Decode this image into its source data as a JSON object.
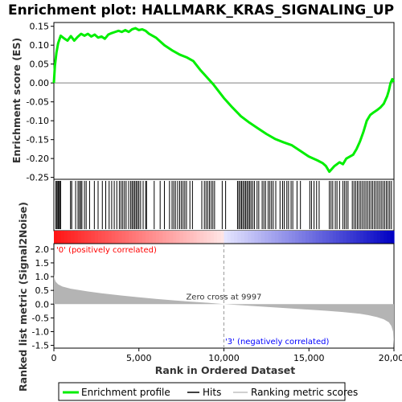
{
  "chart_data": [
    {
      "type": "line",
      "title": "Enrichment plot: HALLMARK_KRAS_SIGNALING_UP",
      "ylabel": "Enrichment score (ES)",
      "ylim": [
        -0.255,
        0.16
      ],
      "yticks": [
        "0.15",
        "0.10",
        "0.05",
        "0.00",
        "-0.05",
        "-0.10",
        "-0.15",
        "-0.20",
        "-0.25"
      ],
      "ytick_values": [
        0.15,
        0.1,
        0.05,
        0.0,
        -0.05,
        -0.1,
        -0.15,
        -0.2,
        -0.25
      ],
      "series": [
        {
          "name": "Enrichment profile",
          "color": "#00ee00",
          "x": [
            0,
            60,
            150,
            250,
            400,
            600,
            800,
            1000,
            1200,
            1400,
            1600,
            1800,
            2000,
            2200,
            2400,
            2600,
            2800,
            3000,
            3200,
            3400,
            3600,
            3800,
            4000,
            4200,
            4400,
            4600,
            4800,
            5000,
            5200,
            5400,
            5600,
            6000,
            6500,
            7000,
            7400,
            7800,
            8200,
            8600,
            9000,
            9400,
            10000,
            10500,
            11000,
            11500,
            12000,
            12500,
            13000,
            13500,
            14000,
            14500,
            15000,
            15500,
            15800,
            16000,
            16200,
            16500,
            16800,
            17000,
            17200,
            17400,
            17600,
            17800,
            18000,
            18200,
            18400,
            18600,
            18800,
            19000,
            19200,
            19400,
            19600,
            19700,
            19800,
            19900,
            20000
          ],
          "y": [
            0.0,
            0.045,
            0.08,
            0.105,
            0.125,
            0.118,
            0.112,
            0.124,
            0.112,
            0.122,
            0.13,
            0.125,
            0.13,
            0.123,
            0.128,
            0.12,
            0.123,
            0.117,
            0.128,
            0.132,
            0.135,
            0.138,
            0.135,
            0.14,
            0.135,
            0.142,
            0.145,
            0.14,
            0.142,
            0.138,
            0.13,
            0.12,
            0.1,
            0.085,
            0.075,
            0.068,
            0.058,
            0.035,
            0.015,
            -0.005,
            -0.04,
            -0.065,
            -0.088,
            -0.105,
            -0.12,
            -0.135,
            -0.148,
            -0.157,
            -0.165,
            -0.18,
            -0.195,
            -0.205,
            -0.212,
            -0.22,
            -0.235,
            -0.22,
            -0.21,
            -0.215,
            -0.2,
            -0.195,
            -0.19,
            -0.175,
            -0.155,
            -0.13,
            -0.1,
            -0.085,
            -0.078,
            -0.072,
            -0.065,
            -0.055,
            -0.035,
            -0.02,
            0.0,
            0.01,
            0.003
          ]
        }
      ]
    },
    {
      "type": "area",
      "ylabel": "Ranked list metric (Signal2Noise)",
      "xlabel": "Rank in Ordered Dataset",
      "xlim": [
        0,
        20000
      ],
      "ylim": [
        -1.6,
        2.2
      ],
      "xticks": [
        "0",
        "5,000",
        "10,000",
        "15,000",
        "20,000"
      ],
      "xtick_values": [
        0,
        5000,
        10000,
        15000,
        20000
      ],
      "yticks": [
        "2.0",
        "1.5",
        "1.0",
        "0.5",
        "0.0",
        "-0.5",
        "-1.0",
        "-1.5"
      ],
      "ytick_values": [
        2.0,
        1.5,
        1.0,
        0.5,
        0.0,
        -0.5,
        -1.0,
        -1.5
      ],
      "series": [
        {
          "name": "Ranking metric scores",
          "color": "#c0c0c0",
          "x": [
            0,
            30,
            100,
            250,
            500,
            1000,
            2000,
            3000,
            4000,
            5000,
            6000,
            7000,
            8000,
            9000,
            9997,
            11000,
            12000,
            13000,
            14000,
            15000,
            16000,
            17000,
            18000,
            18500,
            19000,
            19400,
            19700,
            19850,
            19950,
            20000
          ],
          "y": [
            1.1,
            0.95,
            0.82,
            0.72,
            0.64,
            0.56,
            0.46,
            0.38,
            0.31,
            0.25,
            0.19,
            0.14,
            0.09,
            0.05,
            0.0,
            -0.04,
            -0.08,
            -0.12,
            -0.16,
            -0.2,
            -0.24,
            -0.29,
            -0.35,
            -0.4,
            -0.47,
            -0.55,
            -0.66,
            -0.8,
            -1.0,
            -1.55
          ]
        }
      ],
      "annotations": {
        "positive": "'0' (positively correlated)",
        "negative": "'3' (negatively correlated)",
        "zero_cross": "Zero cross at 9997",
        "zero_cross_x": 9997
      }
    }
  ],
  "hits": [
    120,
    180,
    240,
    290,
    340,
    400,
    980,
    1050,
    1280,
    1420,
    1500,
    1580,
    1650,
    1800,
    1900,
    2100,
    2380,
    2600,
    2850,
    3050,
    3250,
    3400,
    3550,
    3700,
    3850,
    3950,
    4050,
    4150,
    4250,
    4400,
    4520,
    4600,
    4680,
    4760,
    4840,
    4920,
    5000,
    5100,
    5250,
    5400,
    5450,
    5900,
    6250,
    6500,
    6800,
    6950,
    7050,
    7150,
    7280,
    7400,
    7500,
    7600,
    7700,
    7800,
    8000,
    8150,
    8700,
    8850,
    8950,
    9050,
    9150,
    9250,
    9350,
    9450,
    9900,
    10100,
    10800,
    10880,
    10960,
    11040,
    11120,
    11200,
    11280,
    11360,
    11440,
    11520,
    11600,
    11700,
    11800,
    11950,
    12050,
    12250,
    12350,
    12450,
    12600,
    12700,
    12800,
    12900,
    13050,
    13300,
    13450,
    13550,
    13700,
    13800,
    13950,
    14050,
    14300,
    14500,
    15050,
    15150,
    15300,
    15450,
    15600,
    16200,
    16300,
    16400,
    16550,
    16650,
    16800,
    17000,
    17100,
    17200,
    17300,
    17550,
    17650,
    17750,
    17850,
    17950,
    18050,
    18150,
    18250,
    18350,
    18450,
    18550,
    18650,
    18750,
    18850,
    18950,
    19050,
    19150,
    19250,
    19350,
    19450,
    19550,
    19650,
    19750,
    19850
  ],
  "legend": [
    {
      "label": "Enrichment profile",
      "color": "#00ee00"
    },
    {
      "label": "Hits",
      "color": "#000000"
    },
    {
      "label": "Ranking metric scores",
      "color": "#c0c0c0"
    }
  ]
}
